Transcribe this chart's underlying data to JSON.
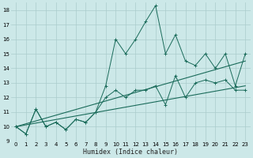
{
  "xlabel": "Humidex (Indice chaleur)",
  "xlim": [
    -0.5,
    23.5
  ],
  "ylim": [
    9,
    18.5
  ],
  "yticks": [
    9,
    10,
    11,
    12,
    13,
    14,
    15,
    16,
    17,
    18
  ],
  "xticks": [
    0,
    1,
    2,
    3,
    4,
    5,
    6,
    7,
    8,
    9,
    10,
    11,
    12,
    13,
    14,
    15,
    16,
    17,
    18,
    19,
    20,
    21,
    22,
    23
  ],
  "bg_color": "#cce8e8",
  "grid_color": "#aacccc",
  "line_color": "#1a6b5a",
  "x": [
    0,
    1,
    2,
    3,
    4,
    5,
    6,
    7,
    8,
    9,
    10,
    11,
    12,
    13,
    14,
    15,
    16,
    17,
    18,
    19,
    20,
    21,
    22,
    23
  ],
  "line1": [
    10.0,
    9.5,
    11.2,
    10.0,
    10.3,
    9.8,
    10.5,
    10.3,
    11.0,
    12.8,
    16.0,
    15.0,
    16.0,
    17.2,
    18.3,
    15.0,
    16.3,
    14.5,
    14.2,
    15.0,
    14.0,
    15.0,
    12.8,
    15.0
  ],
  "line2": [
    10.0,
    9.5,
    11.2,
    10.0,
    10.3,
    9.8,
    10.5,
    10.3,
    11.0,
    12.0,
    12.5,
    12.0,
    12.5,
    12.5,
    12.8,
    11.5,
    13.5,
    12.0,
    13.0,
    13.2,
    13.0,
    13.2,
    12.5,
    12.5
  ],
  "trend1_x": [
    0,
    23
  ],
  "trend1_y": [
    10.0,
    12.8
  ],
  "trend2_x": [
    0,
    23
  ],
  "trend2_y": [
    10.0,
    14.5
  ],
  "marker": "+"
}
